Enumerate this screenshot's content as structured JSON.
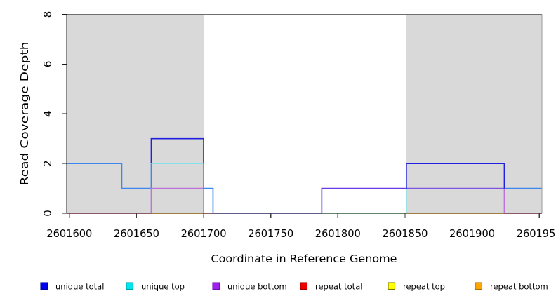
{
  "chart_data": {
    "type": "line",
    "title": "",
    "xlabel": "Coordinate in Reference Genome",
    "ylabel": "Read Coverage Depth",
    "xlim": [
      2601598,
      2601952
    ],
    "ylim": [
      0,
      8
    ],
    "x_ticks": [
      2601600,
      2601650,
      2601700,
      2601750,
      2601800,
      2601850,
      2601900,
      2601950
    ],
    "y_ticks": [
      0,
      2,
      4,
      6,
      8
    ],
    "grid": false,
    "legend_position": "bottom",
    "background_shading": {
      "color": "#d9d9d9",
      "x_ranges": [
        [
          2601598,
          2601700
        ],
        [
          2601851,
          2601952
        ]
      ]
    },
    "series": [
      {
        "name": "unique total",
        "color": "#0000EE",
        "style": "step",
        "points": [
          [
            2601598,
            2
          ],
          [
            2601639,
            1
          ],
          [
            2601661,
            3
          ],
          [
            2601700,
            1
          ],
          [
            2601707,
            0
          ],
          [
            2601788,
            1
          ],
          [
            2601851,
            2
          ],
          [
            2601924,
            1
          ],
          [
            2601952,
            1
          ]
        ]
      },
      {
        "name": "unique top",
        "color": "#00E5EE",
        "style": "step",
        "points": [
          [
            2601598,
            2
          ],
          [
            2601639,
            1
          ],
          [
            2601661,
            2
          ],
          [
            2601700,
            1
          ],
          [
            2601707,
            0
          ],
          [
            2601851,
            1
          ],
          [
            2601952,
            1
          ]
        ]
      },
      {
        "name": "unique bottom",
        "color": "#A020F0",
        "style": "step",
        "points": [
          [
            2601598,
            0
          ],
          [
            2601661,
            1
          ],
          [
            2601700,
            0
          ],
          [
            2601788,
            1
          ],
          [
            2601924,
            0
          ],
          [
            2601952,
            0
          ]
        ]
      },
      {
        "name": "repeat total",
        "color": "#EE0000",
        "style": "step",
        "points": [
          [
            2601598,
            0
          ],
          [
            2601952,
            0
          ]
        ]
      },
      {
        "name": "repeat top",
        "color": "#FFFF00",
        "style": "step",
        "points": [
          [
            2601598,
            0
          ],
          [
            2601952,
            0
          ]
        ]
      },
      {
        "name": "repeat bottom",
        "color": "#FFA500",
        "style": "step",
        "points": [
          [
            2601598,
            0
          ],
          [
            2601952,
            0
          ]
        ]
      }
    ],
    "rendered_segments": [
      {
        "color": "#D14970",
        "points": [
          [
            2601598,
            0
          ],
          [
            2601661,
            0
          ]
        ]
      },
      {
        "color": "#FFA503",
        "points": [
          [
            2601661,
            0
          ],
          [
            2601700,
            0
          ]
        ]
      },
      {
        "color": "#D14970",
        "points": [
          [
            2601700,
            0
          ],
          [
            2601707,
            0
          ]
        ]
      },
      {
        "color": "#5951D6",
        "points": [
          [
            2601707,
            0
          ],
          [
            2601788,
            0
          ]
        ]
      },
      {
        "color": "#63BD77",
        "points": [
          [
            2601788,
            0
          ],
          [
            2601851,
            0
          ]
        ]
      },
      {
        "color": "#FFA503",
        "points": [
          [
            2601851,
            0
          ],
          [
            2601924,
            0
          ]
        ]
      },
      {
        "color": "#D14970",
        "points": [
          [
            2601924,
            0
          ],
          [
            2601952,
            0
          ]
        ]
      },
      {
        "color": "#3E87EE",
        "points": [
          [
            2601598,
            2
          ],
          [
            2601639,
            2
          ],
          [
            2601639,
            1
          ],
          [
            2601661,
            1
          ],
          [
            2601661,
            2
          ]
        ]
      },
      {
        "color": "#84E0EA",
        "points": [
          [
            2601661,
            2
          ],
          [
            2601700,
            2
          ]
        ]
      },
      {
        "color": "#BD72DC",
        "points": [
          [
            2601661,
            0
          ],
          [
            2601661,
            1
          ],
          [
            2601700,
            1
          ],
          [
            2601700,
            0
          ]
        ]
      },
      {
        "color": "#3E87EE",
        "points": [
          [
            2601700,
            2
          ],
          [
            2601700,
            1
          ],
          [
            2601707,
            1
          ],
          [
            2601707,
            0
          ]
        ]
      },
      {
        "color": "#6A3AE8",
        "points": [
          [
            2601788,
            0
          ],
          [
            2601788,
            1
          ],
          [
            2601851,
            1
          ]
        ]
      },
      {
        "color": "#84E0EA",
        "points": [
          [
            2601851,
            0
          ],
          [
            2601851,
            1
          ]
        ]
      },
      {
        "color": "#7D55E0",
        "points": [
          [
            2601851,
            1
          ],
          [
            2601924,
            1
          ]
        ]
      },
      {
        "color": "#BD72DC",
        "points": [
          [
            2601924,
            1
          ],
          [
            2601924,
            0
          ]
        ]
      },
      {
        "color": "#3E87EE",
        "points": [
          [
            2601924,
            1
          ],
          [
            2601952,
            1
          ]
        ]
      },
      {
        "color": "#2020DE",
        "points": [
          [
            2601661,
            2
          ],
          [
            2601661,
            3
          ],
          [
            2601700,
            3
          ],
          [
            2601700,
            2
          ]
        ]
      },
      {
        "color": "#2020DE",
        "points": [
          [
            2601851,
            1
          ],
          [
            2601851,
            2
          ],
          [
            2601924,
            2
          ],
          [
            2601924,
            1
          ]
        ]
      }
    ]
  },
  "legend": {
    "entries": [
      {
        "label": "unique total",
        "fill": "#0000EE",
        "border": "#0000A0"
      },
      {
        "label": "unique top",
        "fill": "#00E5EE",
        "border": "#00A0A8"
      },
      {
        "label": "unique bottom",
        "fill": "#A020F0",
        "border": "#7010B0"
      },
      {
        "label": "repeat total",
        "fill": "#EE0000",
        "border": "#A00000"
      },
      {
        "label": "repeat top",
        "fill": "#FFFF00",
        "border": "#7A7A00"
      },
      {
        "label": "repeat bottom",
        "fill": "#FFA500",
        "border": "#B07000"
      }
    ]
  }
}
